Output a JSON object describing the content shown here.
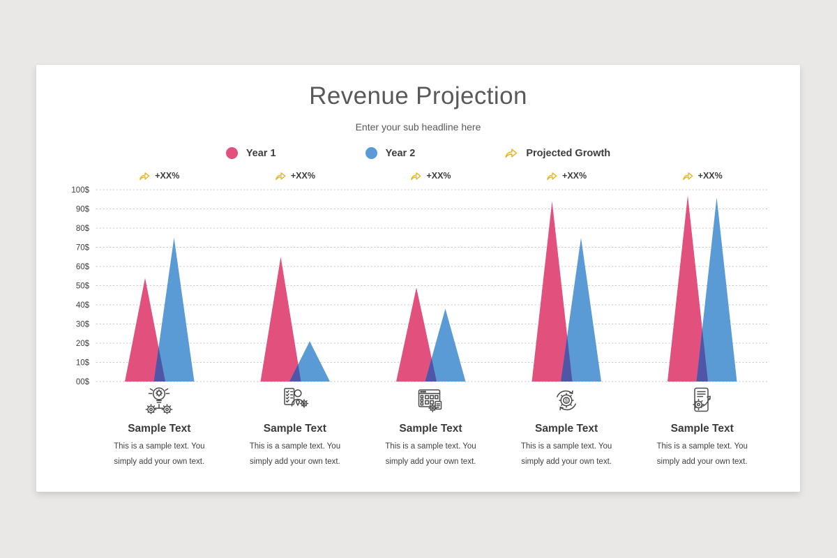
{
  "slide": {
    "title": "Revenue Projection",
    "subtitle": "Enter your sub headline here"
  },
  "legend": {
    "position": "top",
    "items": [
      {
        "label": "Year 1",
        "marker": "circle",
        "color": "#e2517e"
      },
      {
        "label": "Year 2",
        "marker": "circle",
        "color": "#5b9bd5"
      },
      {
        "label": "Projected Growth",
        "marker": "curved-arrow",
        "color": "#e9b31c"
      }
    ]
  },
  "chart_data": {
    "type": "area",
    "subtype": "overlapping-triangle-peaks",
    "title": "Revenue Projection",
    "categories": [
      "Sample Text",
      "Sample Text",
      "Sample Text",
      "Sample Text",
      "Sample Text"
    ],
    "series": [
      {
        "name": "Year 1",
        "color": "#e2517e",
        "values": [
          54,
          65,
          49,
          94,
          97
        ]
      },
      {
        "name": "Year 2",
        "color": "#5b9bd5",
        "values": [
          75,
          21,
          38,
          75,
          96
        ]
      }
    ],
    "overlap_color": "#5056a7",
    "growth_labels": [
      "+XX%",
      "+XX%",
      "+XX%",
      "+XX%",
      "+XX%"
    ],
    "y_axis": {
      "unit": "$",
      "tick_labels": [
        "100$",
        "90$",
        "80$",
        "70$",
        "60$",
        "50$",
        "40$",
        "30$",
        "20$",
        "10$",
        "00$"
      ],
      "tick_values": [
        100,
        90,
        80,
        70,
        60,
        50,
        40,
        30,
        20,
        10,
        0
      ]
    },
    "ylim": [
      0,
      100
    ],
    "grid": "horizontal dotted",
    "legend_entries": [
      "Year 1",
      "Year 2",
      "Projected Growth"
    ]
  },
  "columns": [
    {
      "icon": "idea-bulb-gears",
      "caption": "Sample Text",
      "body": [
        "This is a sample text. You",
        "simply add your own text."
      ]
    },
    {
      "icon": "manager-checklist",
      "caption": "Sample Text",
      "body": [
        "This is a sample text. You",
        "simply add your own text."
      ]
    },
    {
      "icon": "dashboard-window",
      "caption": "Sample Text",
      "body": [
        "This is a sample text. You",
        "simply add your own text."
      ]
    },
    {
      "icon": "money-cycle-gear",
      "caption": "Sample Text",
      "body": [
        "This is a sample text. You",
        "simply add your own text."
      ]
    },
    {
      "icon": "report-growth",
      "caption": "Sample Text",
      "body": [
        "This is a sample text. You",
        "simply add your own text."
      ]
    }
  ]
}
